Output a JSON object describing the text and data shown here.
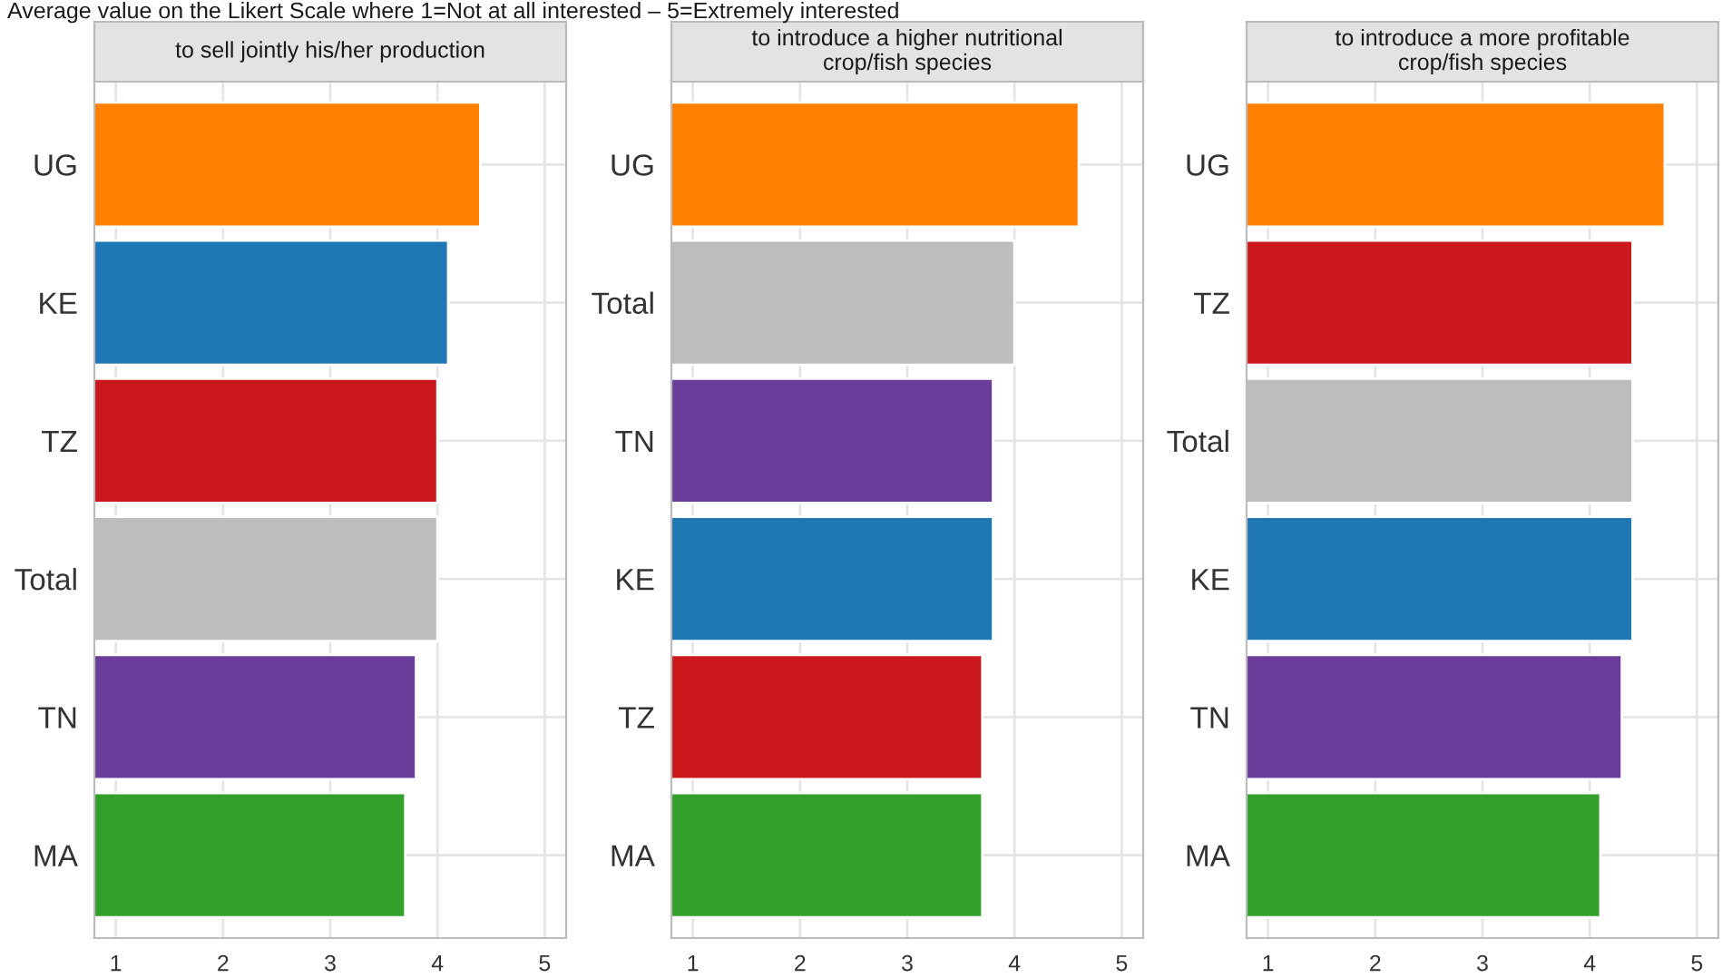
{
  "chart_data": [
    {
      "type": "bar",
      "orientation": "horizontal",
      "title": "to sell jointly his/her production",
      "annotations": [
        "Average value on the Likert Scale where 1=Not at all interested – 5=Extremely interested"
      ],
      "categories": [
        "UG",
        "KE",
        "TZ",
        "Total",
        "TN",
        "MA"
      ],
      "values": [
        4.4,
        4.1,
        4.0,
        4.0,
        3.8,
        3.7
      ],
      "colors": [
        "#ff7f00",
        "#1f78b4",
        "#cb181d",
        "#bdbdbd",
        "#6a3d9a",
        "#33a02c"
      ],
      "xlim": [
        0.8,
        5.2
      ],
      "xticks": [
        1,
        2,
        3,
        4,
        5
      ],
      "grid": true
    },
    {
      "type": "bar",
      "orientation": "horizontal",
      "title": "to introduce a higher nutritional\ncrop/fish species",
      "categories": [
        "UG",
        "Total",
        "TN",
        "KE",
        "TZ",
        "MA"
      ],
      "values": [
        4.6,
        4.0,
        3.8,
        3.8,
        3.7,
        3.7
      ],
      "colors": [
        "#ff7f00",
        "#bdbdbd",
        "#6a3d9a",
        "#1f78b4",
        "#cb181d",
        "#33a02c"
      ],
      "xlim": [
        0.8,
        5.2
      ],
      "xticks": [
        1,
        2,
        3,
        4,
        5
      ],
      "grid": true
    },
    {
      "type": "bar",
      "orientation": "horizontal",
      "title": "to introduce a more profitable\ncrop/fish species",
      "categories": [
        "UG",
        "TZ",
        "Total",
        "KE",
        "TN",
        "MA"
      ],
      "values": [
        4.7,
        4.4,
        4.4,
        4.4,
        4.3,
        4.1
      ],
      "colors": [
        "#ff7f00",
        "#cb181d",
        "#bdbdbd",
        "#1f78b4",
        "#6a3d9a",
        "#33a02c"
      ],
      "xlim": [
        0.8,
        5.2
      ],
      "xticks": [
        1,
        2,
        3,
        4,
        5
      ],
      "grid": true
    }
  ]
}
